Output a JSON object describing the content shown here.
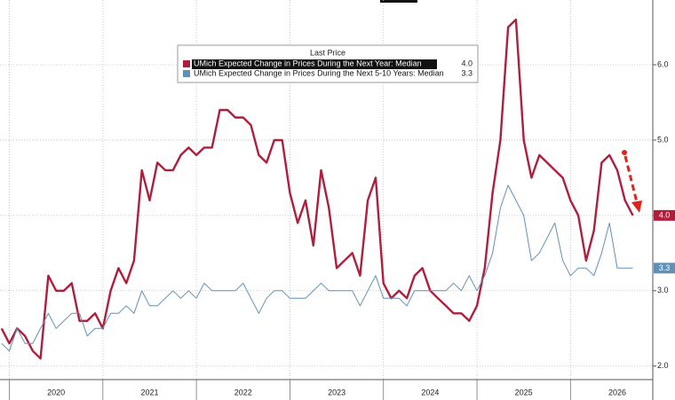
{
  "chart_data": {
    "type": "line",
    "legend_title": "Last Price",
    "x": [
      2019.917,
      2020.0,
      2020.083,
      2020.167,
      2020.25,
      2020.333,
      2020.417,
      2020.5,
      2020.583,
      2020.667,
      2020.75,
      2020.833,
      2020.917,
      2021.0,
      2021.083,
      2021.167,
      2021.25,
      2021.333,
      2021.417,
      2021.5,
      2021.583,
      2021.667,
      2021.75,
      2021.833,
      2021.917,
      2022.0,
      2022.083,
      2022.167,
      2022.25,
      2022.333,
      2022.417,
      2022.5,
      2022.583,
      2022.667,
      2022.75,
      2022.833,
      2022.917,
      2023.0,
      2023.083,
      2023.167,
      2023.25,
      2023.333,
      2023.417,
      2023.5,
      2023.583,
      2023.667,
      2023.75,
      2023.833,
      2023.917,
      2024.0,
      2024.083,
      2024.167,
      2024.25,
      2024.333,
      2024.417,
      2024.5,
      2024.583,
      2024.667,
      2024.75,
      2024.833,
      2024.917,
      2025.0,
      2025.083,
      2025.167,
      2025.25,
      2025.333,
      2025.417,
      2025.5,
      2025.583,
      2025.667,
      2025.75,
      2025.833,
      2025.917,
      2026.0,
      2026.083,
      2026.167,
      2026.25,
      2026.333,
      2026.417,
      2026.5,
      2026.583,
      2026.667
    ],
    "series": [
      {
        "name": "UMich Expected Change in Prices During the Next Year: Median",
        "color": "#b01e3c",
        "last_label": "4.0",
        "values": [
          2.5,
          2.3,
          2.5,
          2.4,
          2.2,
          2.1,
          3.2,
          3.0,
          3.0,
          3.1,
          2.6,
          2.6,
          2.7,
          2.5,
          3.0,
          3.3,
          3.1,
          3.4,
          4.6,
          4.2,
          4.7,
          4.6,
          4.6,
          4.8,
          4.9,
          4.8,
          4.9,
          4.9,
          5.4,
          5.4,
          5.3,
          5.3,
          5.2,
          4.8,
          4.7,
          5.0,
          5.0,
          4.3,
          3.9,
          4.2,
          3.6,
          4.6,
          4.1,
          3.3,
          3.4,
          3.5,
          3.2,
          4.2,
          4.5,
          3.1,
          2.9,
          3.0,
          2.9,
          3.2,
          3.3,
          3.0,
          2.9,
          2.8,
          2.7,
          2.7,
          2.6,
          2.8,
          3.3,
          4.3,
          5.0,
          6.5,
          6.6,
          5.0,
          4.5,
          4.8,
          4.7,
          4.6,
          4.5,
          4.2,
          4.0,
          3.4,
          3.8,
          4.7,
          4.8,
          4.6,
          4.2,
          4.0
        ]
      },
      {
        "name": "UMich Expected Change in Prices During the Next 5-10 Years: Median",
        "color": "#5e90b8",
        "last_label": "3.3",
        "values": [
          2.3,
          2.2,
          2.5,
          2.3,
          2.3,
          2.5,
          2.7,
          2.5,
          2.6,
          2.7,
          2.7,
          2.4,
          2.5,
          2.5,
          2.7,
          2.7,
          2.8,
          2.7,
          3.0,
          2.8,
          2.8,
          2.9,
          3.0,
          2.9,
          3.0,
          2.9,
          3.1,
          3.0,
          3.0,
          3.0,
          3.0,
          3.1,
          2.9,
          2.7,
          2.9,
          3.0,
          3.0,
          2.9,
          2.9,
          2.9,
          3.0,
          3.1,
          3.0,
          3.0,
          3.0,
          3.0,
          2.8,
          3.0,
          3.2,
          2.9,
          2.9,
          2.9,
          2.8,
          3.0,
          3.0,
          3.0,
          3.0,
          3.0,
          3.1,
          3.0,
          3.2,
          3.0,
          3.2,
          3.5,
          4.1,
          4.4,
          4.2,
          4.0,
          3.4,
          3.5,
          3.7,
          3.9,
          3.4,
          3.2,
          3.3,
          3.3,
          3.2,
          3.5,
          3.9,
          3.3,
          3.3,
          3.3
        ]
      }
    ],
    "xlim": [
      2019.9,
      2026.88
    ],
    "xticks": [
      2020,
      2021,
      2022,
      2023,
      2024,
      2025,
      2026
    ],
    "ylim": [
      1.82,
      6.86
    ],
    "yticks": [
      {
        "value": 2,
        "label": "2.0"
      },
      {
        "value": 3,
        "label": "3.0"
      },
      {
        "value": 4,
        "label": "4.0"
      },
      {
        "value": 5,
        "label": "5.0"
      },
      {
        "value": 6,
        "label": "6.0"
      }
    ],
    "grid": true
  }
}
